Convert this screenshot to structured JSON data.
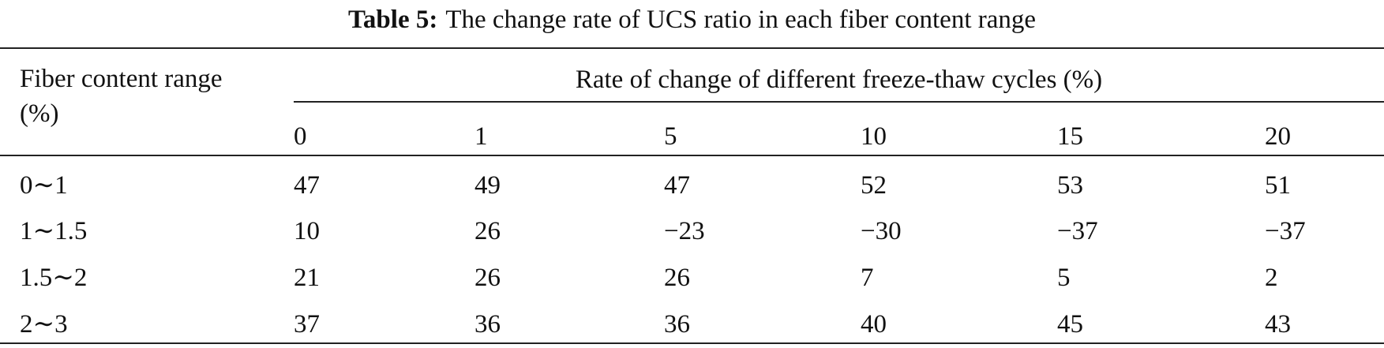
{
  "caption": {
    "label": "Table 5:",
    "text": "The change rate of UCS ratio in each fiber content range"
  },
  "table": {
    "row_header": "Fiber content range (%)",
    "group_header": "Rate of change of different freeze-thaw cycles (%)",
    "columns": [
      "0",
      "1",
      "5",
      "10",
      "15",
      "20"
    ],
    "rows": [
      {
        "label": "0∼1",
        "values": [
          "47",
          "49",
          "47",
          "52",
          "53",
          "51"
        ]
      },
      {
        "label": "1∼1.5",
        "values": [
          "10",
          "26",
          "−23",
          "−30",
          "−37",
          "−37"
        ]
      },
      {
        "label": "1.5∼2",
        "values": [
          "21",
          "26",
          "26",
          "7",
          "5",
          "2"
        ]
      },
      {
        "label": "2∼3",
        "values": [
          "37",
          "36",
          "36",
          "40",
          "45",
          "43"
        ]
      }
    ]
  }
}
